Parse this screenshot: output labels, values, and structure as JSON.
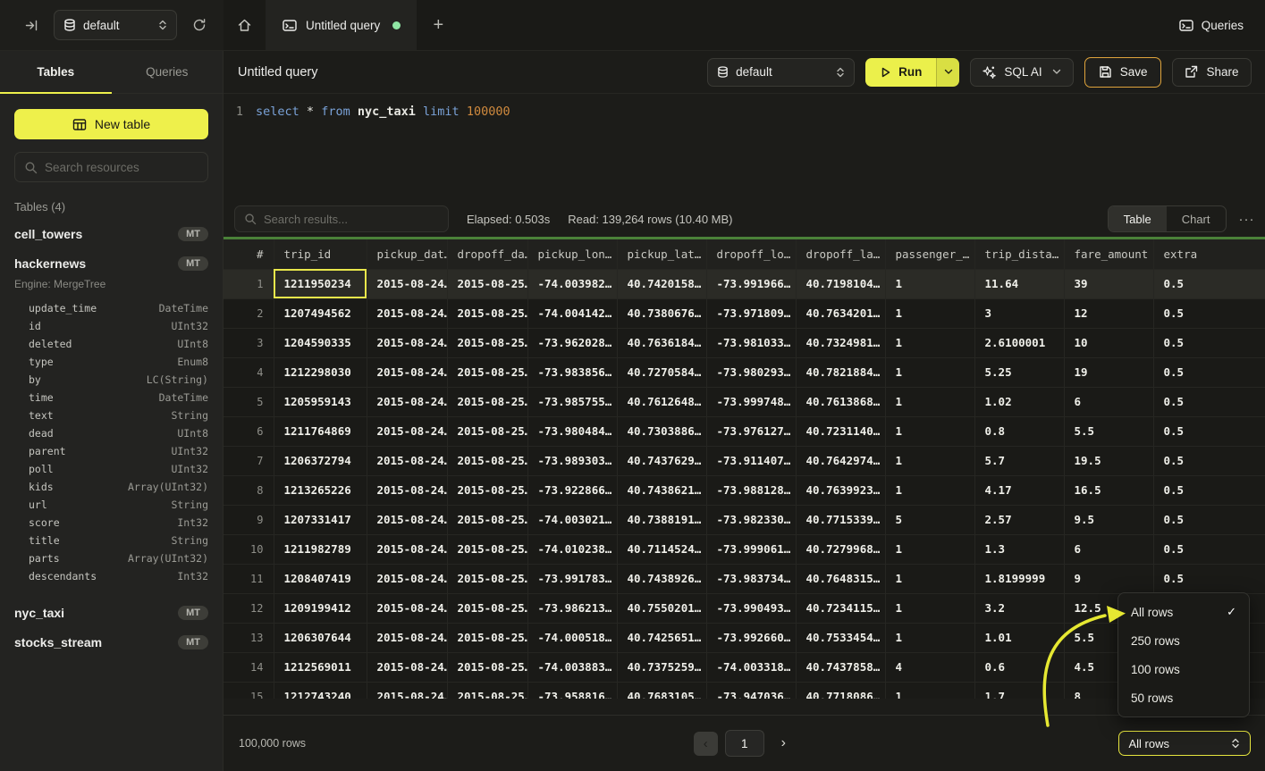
{
  "topbar": {
    "database": "default",
    "tab_title": "Untitled query",
    "plus": "+",
    "queries_label": "Queries"
  },
  "sidebar": {
    "tab_tables": "Tables",
    "tab_queries": "Queries",
    "new_table_label": "New table",
    "search_placeholder": "Search resources",
    "section_label": "Tables (4)",
    "tables": [
      {
        "name": "cell_towers",
        "badge": "MT"
      },
      {
        "name": "hackernews",
        "badge": "MT",
        "engine": "Engine: MergeTree"
      },
      {
        "name": "nyc_taxi",
        "badge": "MT"
      },
      {
        "name": "stocks_stream",
        "badge": "MT"
      }
    ],
    "hackernews_columns": [
      {
        "name": "update_time",
        "type": "DateTime"
      },
      {
        "name": "id",
        "type": "UInt32"
      },
      {
        "name": "deleted",
        "type": "UInt8"
      },
      {
        "name": "type",
        "type": "Enum8"
      },
      {
        "name": "by",
        "type": "LC(String)"
      },
      {
        "name": "time",
        "type": "DateTime"
      },
      {
        "name": "text",
        "type": "String"
      },
      {
        "name": "dead",
        "type": "UInt8"
      },
      {
        "name": "parent",
        "type": "UInt32"
      },
      {
        "name": "poll",
        "type": "UInt32"
      },
      {
        "name": "kids",
        "type": "Array(UInt32)"
      },
      {
        "name": "url",
        "type": "String"
      },
      {
        "name": "score",
        "type": "Int32"
      },
      {
        "name": "title",
        "type": "String"
      },
      {
        "name": "parts",
        "type": "Array(UInt32)"
      },
      {
        "name": "descendants",
        "type": "Int32"
      }
    ]
  },
  "query_header": {
    "title": "Untitled query",
    "database": "default",
    "run_label": "Run",
    "sql_ai_label": "SQL AI",
    "save_label": "Save",
    "share_label": "Share"
  },
  "editor": {
    "line_number": "1",
    "tokens": {
      "kw1": "select",
      "star": "*",
      "kw2": "from",
      "table": "nyc_taxi",
      "kw3": "limit",
      "num": "100000"
    }
  },
  "results": {
    "search_placeholder": "Search results...",
    "elapsed": "Elapsed: 0.503s",
    "read": "Read: 139,264 rows (10.40 MB)",
    "view_table": "Table",
    "view_chart": "Chart",
    "more": "···",
    "columns": [
      "#",
      "trip_id",
      "pickup_dat…",
      "dropoff_da…",
      "pickup_lon…",
      "pickup_lat…",
      "dropoff_lo…",
      "dropoff_la…",
      "passenger_…",
      "trip_dista…",
      "fare_amount",
      "extra"
    ],
    "rows": [
      [
        "1",
        "1211950234",
        "2015-08-24…",
        "2015-08-25…",
        "-74.003982…",
        "40.7420158…",
        "-73.991966…",
        "40.7198104…",
        "1",
        "11.64",
        "39",
        "0.5"
      ],
      [
        "2",
        "1207494562",
        "2015-08-24…",
        "2015-08-25…",
        "-74.004142…",
        "40.7380676…",
        "-73.971809…",
        "40.7634201…",
        "1",
        "3",
        "12",
        "0.5"
      ],
      [
        "3",
        "1204590335",
        "2015-08-24…",
        "2015-08-25…",
        "-73.962028…",
        "40.7636184…",
        "-73.981033…",
        "40.7324981…",
        "1",
        "2.6100001",
        "10",
        "0.5"
      ],
      [
        "4",
        "1212298030",
        "2015-08-24…",
        "2015-08-25…",
        "-73.983856…",
        "40.7270584…",
        "-73.980293…",
        "40.7821884…",
        "1",
        "5.25",
        "19",
        "0.5"
      ],
      [
        "5",
        "1205959143",
        "2015-08-24…",
        "2015-08-25…",
        "-73.985755…",
        "40.7612648…",
        "-73.999748…",
        "40.7613868…",
        "1",
        "1.02",
        "6",
        "0.5"
      ],
      [
        "6",
        "1211764869",
        "2015-08-24…",
        "2015-08-25…",
        "-73.980484…",
        "40.7303886…",
        "-73.976127…",
        "40.7231140…",
        "1",
        "0.8",
        "5.5",
        "0.5"
      ],
      [
        "7",
        "1206372794",
        "2015-08-24…",
        "2015-08-25…",
        "-73.989303…",
        "40.7437629…",
        "-73.911407…",
        "40.7642974…",
        "1",
        "5.7",
        "19.5",
        "0.5"
      ],
      [
        "8",
        "1213265226",
        "2015-08-24…",
        "2015-08-25…",
        "-73.922866…",
        "40.7438621…",
        "-73.988128…",
        "40.7639923…",
        "1",
        "4.17",
        "16.5",
        "0.5"
      ],
      [
        "9",
        "1207331417",
        "2015-08-24…",
        "2015-08-25…",
        "-74.003021…",
        "40.7388191…",
        "-73.982330…",
        "40.7715339…",
        "5",
        "2.57",
        "9.5",
        "0.5"
      ],
      [
        "10",
        "1211982789",
        "2015-08-24…",
        "2015-08-25…",
        "-74.010238…",
        "40.7114524…",
        "-73.999061…",
        "40.7279968…",
        "1",
        "1.3",
        "6",
        "0.5"
      ],
      [
        "11",
        "1208407419",
        "2015-08-24…",
        "2015-08-25…",
        "-73.991783…",
        "40.7438926…",
        "-73.983734…",
        "40.7648315…",
        "1",
        "1.8199999",
        "9",
        "0.5"
      ],
      [
        "12",
        "1209199412",
        "2015-08-24…",
        "2015-08-25…",
        "-73.986213…",
        "40.7550201…",
        "-73.990493…",
        "40.7234115…",
        "1",
        "3.2",
        "12.5",
        "0.5"
      ],
      [
        "13",
        "1206307644",
        "2015-08-24…",
        "2015-08-25…",
        "-74.000518…",
        "40.7425651…",
        "-73.992660…",
        "40.7533454…",
        "1",
        "1.01",
        "5.5",
        "0.5"
      ],
      [
        "14",
        "1212569011",
        "2015-08-24…",
        "2015-08-25…",
        "-74.003883…",
        "40.7375259…",
        "-74.003318…",
        "40.7437858…",
        "4",
        "0.6",
        "4.5",
        "0.5"
      ],
      [
        "15",
        "1212743240",
        "2015-08-24…",
        "2015-08-25…",
        "-73.958816…",
        "40.7683105…",
        "-73.947036…",
        "40.7718086…",
        "1",
        "1.7",
        "8",
        "0.5"
      ]
    ]
  },
  "footer": {
    "row_count": "100,000 rows",
    "prev": "‹",
    "page": "1",
    "next": "›",
    "page_size": "All rows"
  },
  "dropdown": {
    "options": [
      {
        "label": "All rows",
        "selected": true
      },
      {
        "label": "250 rows",
        "selected": false
      },
      {
        "label": "100 rows",
        "selected": false
      },
      {
        "label": "50 rows",
        "selected": false
      }
    ],
    "check": "✓"
  },
  "colors": {
    "accent_yellow": "#eef04b",
    "save_border": "#dfa43c",
    "progress_green": "#4a8138",
    "tab_dot_green": "#8fe5a3",
    "selected_cell_outline": "#e9e74b"
  }
}
